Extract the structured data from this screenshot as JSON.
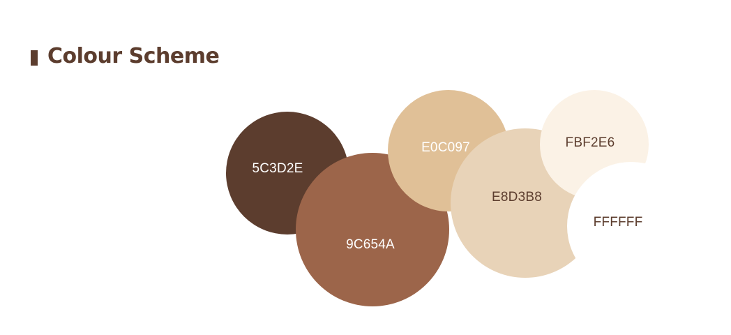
{
  "header": {
    "title": "Colour Scheme",
    "accent_color": "#5C3D2E",
    "title_color": "#5C3D2E"
  },
  "palette": [
    {
      "label": "5C3D2E",
      "color": "#5C3D2E",
      "text_color": "#FFFFFF"
    },
    {
      "label": "9C654A",
      "color": "#9C654A",
      "text_color": "#FFFFFF"
    },
    {
      "label": "E0C097",
      "color": "#E0C097",
      "text_color": "#FFFFFF"
    },
    {
      "label": "E8D3B8",
      "color": "#E8D3B8",
      "text_color": "#5C3D2E"
    },
    {
      "label": "FBF2E6",
      "color": "#FBF2E6",
      "text_color": "#5C3D2E"
    },
    {
      "label": "FFFFFF",
      "color": "#FFFFFF",
      "text_color": "#5C3D2E"
    }
  ]
}
